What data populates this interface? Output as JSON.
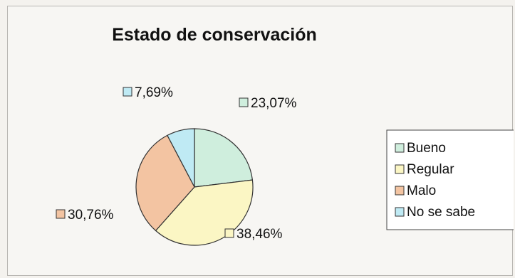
{
  "chart_data": {
    "type": "pie",
    "title": "Estado de conservación",
    "categories": [
      "Bueno",
      "Regular",
      "Malo",
      "No se sabe"
    ],
    "values": [
      23.07,
      38.46,
      30.76,
      7.69
    ],
    "data_labels": [
      "23,07%",
      "38,46%",
      "30,76%",
      "7,69%"
    ],
    "colors": [
      "#cfeedd",
      "#fbf6c4",
      "#f3c4a2",
      "#bfeaf4"
    ],
    "legend_position": "right",
    "start_angle_deg": 90,
    "direction": "clockwise"
  }
}
